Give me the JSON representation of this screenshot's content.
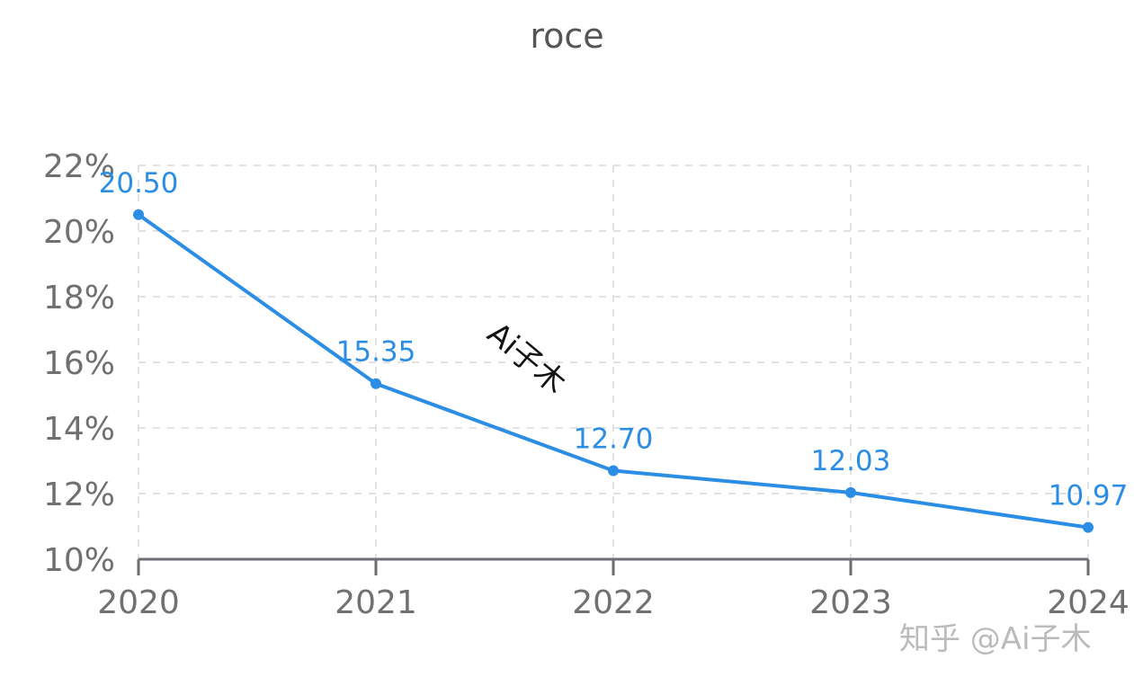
{
  "chart_data": {
    "type": "line",
    "title": "roce",
    "xlabel": "",
    "ylabel": "",
    "categories": [
      "2020",
      "2021",
      "2022",
      "2023",
      "2024"
    ],
    "series": [
      {
        "name": "roce",
        "values": [
          20.5,
          15.35,
          12.7,
          12.03,
          10.97
        ],
        "labels": [
          "20.50",
          "15.35",
          "12.70",
          "12.03",
          "10.97"
        ],
        "color": "#2b8de3"
      }
    ],
    "ylim": [
      10,
      22
    ],
    "yticks": [
      "10%",
      "12%",
      "14%",
      "16%",
      "18%",
      "20%",
      "22%"
    ],
    "grid": true,
    "legend": "none"
  },
  "watermarks": {
    "center": "Ai子木",
    "corner": "知乎 @Ai子木"
  },
  "colors": {
    "line": "#2b8de3",
    "axis": "#6e6e74",
    "tick_text": "#707070",
    "grid": "#e2e2e2"
  }
}
